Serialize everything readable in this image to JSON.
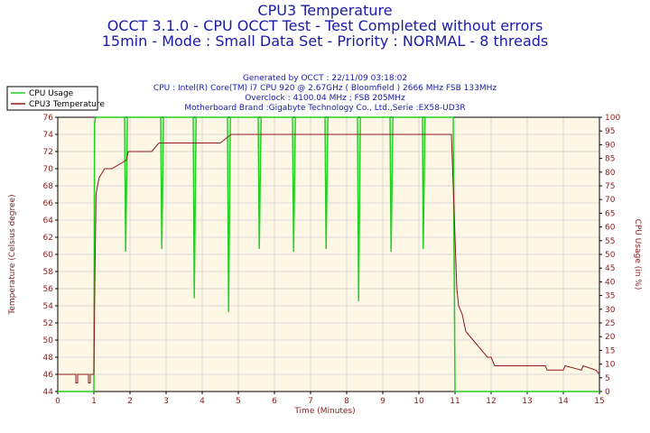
{
  "header": {
    "title": "CPU3 Temperature",
    "line2": "OCCT 3.1.0 - CPU OCCT Test - Test Completed without errors",
    "line3": "15min - Mode : Small Data Set - Priority : NORMAL - 8 threads"
  },
  "info": {
    "generated": "Generated by OCCT : 22/11/09 03:18:02",
    "cpu": "CPU : Intel(R) Core(TM) i7 CPU 920 @ 2.67GHz ( Bloomfield ) 2666 MHz FSB 133MHz",
    "overclock": "Overclock : 4100.04 MHz ; FSB 205MHz",
    "motherboard": "Motherboard Brand :Gigabyte Technology Co., Ltd.,Serie :EX58-UD3R"
  },
  "colors": {
    "temp": "#8b1a1a",
    "usage": "#22d022",
    "plot_bg": "#fff7e6",
    "grid": "#d9d9d9",
    "axis_text": "#8b1a1a",
    "header": "#1a1aa6"
  },
  "chart_data": {
    "type": "line",
    "title": "CPU3 Temperature",
    "xlabel": "Time (Minutes)",
    "ylabel_left": "Temperature (Celsius degree)",
    "ylabel_right": "CPU Usage (in %)",
    "xlim": [
      0,
      15
    ],
    "ylim_left": [
      44,
      76
    ],
    "ylim_right": [
      0,
      100
    ],
    "x_ticks": [
      "0",
      "1",
      "2",
      "3",
      "4",
      "5",
      "6",
      "7",
      "8",
      "9",
      "10",
      "11",
      "12",
      "13",
      "14",
      "15"
    ],
    "y_ticks_left": [
      "44",
      "46",
      "48",
      "50",
      "52",
      "54",
      "56",
      "58",
      "60",
      "62",
      "64",
      "66",
      "68",
      "70",
      "72",
      "74",
      "76"
    ],
    "y_ticks_right": [
      "0",
      "5",
      "10",
      "15",
      "20",
      "25",
      "30",
      "35",
      "40",
      "45",
      "50",
      "55",
      "60",
      "65",
      "70",
      "75",
      "80",
      "85",
      "90",
      "95",
      "100"
    ],
    "grid": true,
    "legend_position": "top-left",
    "series": [
      {
        "name": "CPU Usage",
        "axis": "right",
        "color": "#22d022",
        "x": [
          0,
          1.0,
          1.02,
          1.05,
          1.1,
          1.85,
          1.88,
          1.93,
          2.85,
          2.88,
          2.93,
          3.75,
          3.78,
          3.83,
          4.7,
          4.73,
          4.78,
          5.55,
          5.58,
          5.63,
          6.5,
          6.53,
          6.58,
          7.4,
          7.43,
          7.48,
          8.3,
          8.33,
          8.38,
          9.2,
          9.23,
          9.28,
          10.1,
          10.12,
          10.17,
          10.95,
          11.0,
          11.05,
          15
        ],
        "y": [
          0,
          0,
          98,
          100,
          100,
          100,
          51,
          100,
          100,
          52,
          100,
          100,
          34,
          100,
          100,
          29,
          100,
          100,
          52,
          100,
          100,
          51,
          100,
          100,
          52,
          100,
          100,
          33,
          100,
          100,
          51,
          100,
          100,
          52,
          100,
          100,
          0,
          0,
          0
        ]
      },
      {
        "name": "CPU3 Temperature",
        "axis": "left",
        "color": "#8b1a1a",
        "x": [
          0,
          0.5,
          0.5,
          0.55,
          0.55,
          0.85,
          0.85,
          0.9,
          0.9,
          1.0,
          1.03,
          1.06,
          1.1,
          1.15,
          1.3,
          1.5,
          1.9,
          1.95,
          2.6,
          2.8,
          3.6,
          4.1,
          4.5,
          4.8,
          8.2,
          8.4,
          9.0,
          10.0,
          10.5,
          10.9,
          11.05,
          11.1,
          11.2,
          11.3,
          11.5,
          11.7,
          11.9,
          12.0,
          12.1,
          13.0,
          13.5,
          13.55,
          14.0,
          14.05,
          14.5,
          14.55,
          14.9,
          15
        ],
        "y": [
          46,
          46,
          45,
          45,
          46,
          46,
          45,
          45,
          46,
          46,
          58,
          67,
          68,
          69,
          70,
          70,
          71,
          72,
          72,
          73,
          73,
          73,
          73,
          74,
          74,
          74,
          74,
          74,
          74,
          74,
          56,
          54,
          53,
          51,
          50,
          49,
          48,
          48,
          47,
          47,
          47,
          46.5,
          46.5,
          47,
          46.5,
          47,
          46.5,
          46
        ]
      }
    ]
  }
}
